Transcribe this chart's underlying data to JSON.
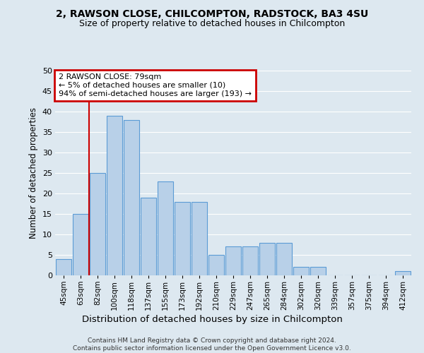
{
  "title_line1": "2, RAWSON CLOSE, CHILCOMPTON, RADSTOCK, BA3 4SU",
  "title_line2": "Size of property relative to detached houses in Chilcompton",
  "xlabel": "Distribution of detached houses by size in Chilcompton",
  "ylabel": "Number of detached properties",
  "footnote": "Contains HM Land Registry data © Crown copyright and database right 2024.\nContains public sector information licensed under the Open Government Licence v3.0.",
  "bin_labels": [
    "45sqm",
    "63sqm",
    "82sqm",
    "100sqm",
    "118sqm",
    "137sqm",
    "155sqm",
    "173sqm",
    "192sqm",
    "210sqm",
    "229sqm",
    "247sqm",
    "265sqm",
    "284sqm",
    "302sqm",
    "320sqm",
    "339sqm",
    "357sqm",
    "375sqm",
    "394sqm",
    "412sqm"
  ],
  "bar_heights": [
    4,
    15,
    25,
    39,
    38,
    19,
    23,
    18,
    18,
    5,
    7,
    7,
    8,
    8,
    2,
    2,
    0,
    0,
    0,
    0,
    1
  ],
  "bar_color": "#b8d0e8",
  "bar_edge_color": "#5b9bd5",
  "background_color": "#dde8f0",
  "grid_color": "#ffffff",
  "red_line_x": 1.52,
  "annotation_text": "2 RAWSON CLOSE: 79sqm\n← 5% of detached houses are smaller (10)\n94% of semi-detached houses are larger (193) →",
  "annotation_box_color": "#ffffff",
  "annotation_edge_color": "#cc0000",
  "ylim": [
    0,
    50
  ],
  "yticks": [
    0,
    5,
    10,
    15,
    20,
    25,
    30,
    35,
    40,
    45,
    50
  ],
  "title_fontsize": 10,
  "subtitle_fontsize": 9
}
